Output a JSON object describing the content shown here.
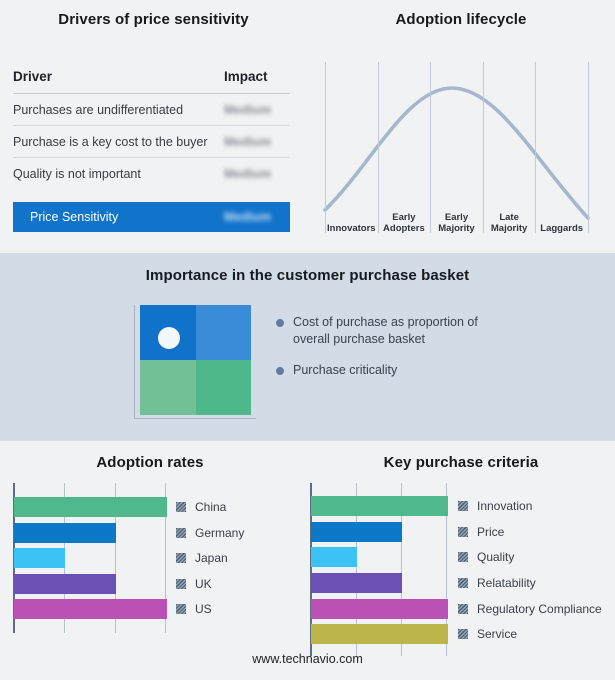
{
  "footer": "www.technavio.com",
  "theme": {
    "background": "#f1f2f4",
    "middle_band": "#d3dce6",
    "highlight_blue": "#1173ca",
    "curve_color": "#a6b6cd",
    "grid_color": "#b7c0cb",
    "axis_color": "#5c6e83"
  },
  "basket": {
    "title": "Importance in the customer purchase basket",
    "bullets": [
      "Cost of purchase as proportion of\noverall purchase basket",
      "Purchase criticality"
    ],
    "quadrant_colors": [
      "#1072c8",
      "#3a8cd8",
      "#72c096",
      "#4eb88a"
    ]
  },
  "chart_data": [
    {
      "type": "table",
      "title": "Drivers of price sensitivity",
      "columns": [
        "Driver",
        "Impact"
      ],
      "rows": [
        [
          "Purchases are undifferentiated",
          "Medium"
        ],
        [
          "Purchase is a key cost to the buyer",
          "Medium"
        ],
        [
          "Quality is not important",
          "Medium"
        ]
      ],
      "highlight_row": [
        "Price Sensitivity",
        "Medium"
      ],
      "note": "Impact values are blurred in the source image; highlight row is blue"
    },
    {
      "type": "line",
      "title": "Adoption lifecycle",
      "categories": [
        "Innovators",
        "Early Adopters",
        "Early Majority",
        "Late Majority",
        "Laggards"
      ],
      "display_labels": [
        "Innovators",
        "Early\nAdopters",
        "Early\nMajority",
        "Late\nMajority",
        "Laggards"
      ],
      "shape": "bell curve rising from Innovators, peaking at Early Majority, falling to Laggards",
      "grid": "6 vertical stage-divider lines, no y axis"
    },
    {
      "type": "bar",
      "orientation": "horizontal",
      "title": "Adoption rates",
      "categories": [
        "China",
        "Germany",
        "Japan",
        "UK",
        "US"
      ],
      "values": [
        3,
        2,
        1,
        2,
        3
      ],
      "xlim": [
        0,
        3
      ],
      "tick_labels": "none (unlabeled gridlines at 1, 2, 3)",
      "bar_colors": [
        "#4fb88d",
        "#0c78c8",
        "#3cc3f5",
        "#6b51b5",
        "#bb51b4"
      ],
      "legend_position": "right",
      "grid": true
    },
    {
      "type": "bar",
      "orientation": "horizontal",
      "title": "Key purchase criteria",
      "categories": [
        "Innovation",
        "Price",
        "Quality",
        "Relatability",
        "Regulatory Compliance",
        "Service"
      ],
      "values": [
        3,
        2,
        1,
        2,
        3,
        3
      ],
      "xlim": [
        0,
        3
      ],
      "tick_labels": "none (unlabeled gridlines at 1, 2, 3)",
      "bar_colors": [
        "#4fb88d",
        "#0c78c8",
        "#3cc3f5",
        "#6b51b5",
        "#bb51b4",
        "#bdb54b"
      ],
      "legend_position": "right",
      "grid": true
    }
  ]
}
